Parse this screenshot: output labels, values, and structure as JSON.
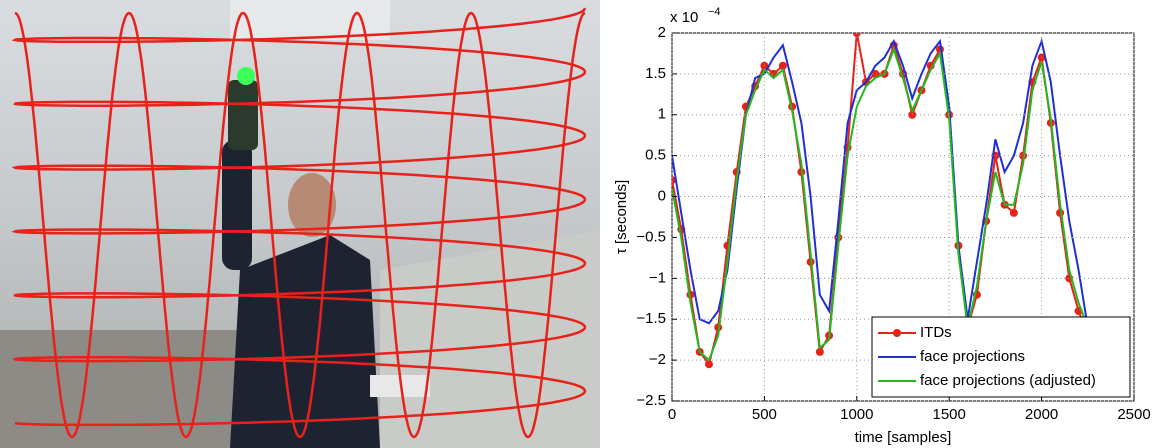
{
  "chart_data": {
    "type": "line",
    "ylabel": "τ [seconds]",
    "xlabel": "time [samples]",
    "y_scale_label": {
      "base": "x 10",
      "exponent": "−4"
    },
    "x": [
      0,
      50,
      100,
      150,
      200,
      250,
      300,
      350,
      400,
      450,
      500,
      550,
      600,
      650,
      700,
      750,
      800,
      850,
      900,
      950,
      1000,
      1050,
      1100,
      1150,
      1200,
      1250,
      1300,
      1350,
      1400,
      1450,
      1500,
      1550,
      1600,
      1650,
      1700,
      1750,
      1800,
      1850,
      1900,
      1950,
      2000,
      2050,
      2100,
      2150,
      2200,
      2250
    ],
    "series": [
      {
        "name": "ITDs",
        "color": "#e8211a",
        "markers": true,
        "values": [
          0.2,
          -0.4,
          -1.2,
          -1.9,
          -2.05,
          -1.6,
          -0.6,
          0.3,
          1.1,
          1.35,
          1.6,
          1.5,
          1.6,
          1.1,
          0.3,
          -0.8,
          -1.9,
          -1.7,
          -0.5,
          0.6,
          2.0,
          1.4,
          1.5,
          1.5,
          1.85,
          1.5,
          1.0,
          1.3,
          1.6,
          1.8,
          1.0,
          -0.6,
          -1.6,
          -1.2,
          -0.3,
          0.5,
          -0.1,
          -0.2,
          0.5,
          1.4,
          1.7,
          0.9,
          -0.2,
          -1.0,
          -1.4,
          -1.7
        ]
      },
      {
        "name": "face projections",
        "color": "#1f2fd6",
        "markers": false,
        "values": [
          0.5,
          -0.2,
          -0.9,
          -1.5,
          -1.55,
          -1.4,
          -0.9,
          0.1,
          1.0,
          1.45,
          1.5,
          1.7,
          1.85,
          1.4,
          0.9,
          0.0,
          -1.2,
          -1.4,
          -0.3,
          0.9,
          1.3,
          1.4,
          1.6,
          1.7,
          1.9,
          1.6,
          1.2,
          1.5,
          1.75,
          1.9,
          1.1,
          -0.6,
          -1.5,
          -0.8,
          -0.1,
          0.7,
          0.3,
          0.5,
          0.9,
          1.6,
          1.9,
          1.4,
          0.5,
          -0.3,
          -0.9,
          -1.6
        ]
      },
      {
        "name": "face projections (adjusted)",
        "color": "#22b820",
        "markers": false,
        "values": [
          0.1,
          -0.5,
          -1.3,
          -1.9,
          -2.0,
          -1.7,
          -0.8,
          0.2,
          1.0,
          1.3,
          1.55,
          1.45,
          1.55,
          1.05,
          0.4,
          -0.7,
          -1.85,
          -1.75,
          -0.6,
          0.5,
          1.1,
          1.35,
          1.45,
          1.5,
          1.8,
          1.45,
          1.05,
          1.3,
          1.55,
          1.75,
          0.95,
          -0.7,
          -1.6,
          -1.1,
          -0.3,
          0.3,
          -0.1,
          -0.1,
          0.4,
          1.3,
          1.65,
          0.95,
          -0.1,
          -0.9,
          -1.3,
          -1.6
        ]
      }
    ],
    "xlim": [
      0,
      2500
    ],
    "ylim": [
      -2.5,
      2
    ],
    "xticks": [
      0,
      500,
      1000,
      1500,
      2000,
      2500
    ],
    "yticks": [
      {
        "value": -2.5,
        "label": "−2.5"
      },
      {
        "value": -2,
        "label": "−2"
      },
      {
        "value": -1.5,
        "label": "−1.5"
      },
      {
        "value": -1,
        "label": "−1"
      },
      {
        "value": -0.5,
        "label": "−0.5"
      },
      0,
      0.5,
      1,
      1.5,
      2
    ],
    "grid": true,
    "legend": "lower right"
  }
}
